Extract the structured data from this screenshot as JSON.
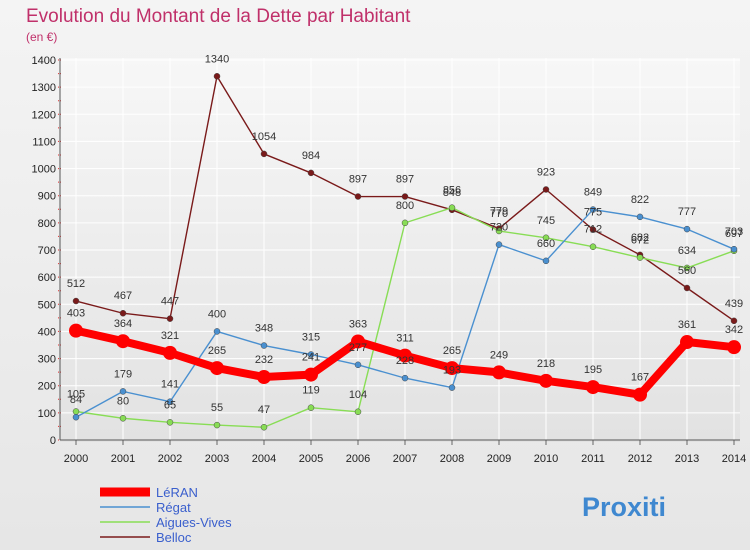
{
  "chart_data": {
    "type": "line",
    "title": "Evolution du Montant de la Dette par Habitant",
    "subtitle": "(en €)",
    "xlabel": "",
    "ylabel": "",
    "x": [
      "2000",
      "2001",
      "2002",
      "2003",
      "2004",
      "2005",
      "2006",
      "2007",
      "2008",
      "2009",
      "2010",
      "2011",
      "2012",
      "2013",
      "2014"
    ],
    "ylim": [
      0,
      1400
    ],
    "yticks": [
      0,
      100,
      200,
      300,
      400,
      500,
      600,
      700,
      800,
      900,
      1000,
      1100,
      1200,
      1300,
      1400
    ],
    "grid": true,
    "legend_position": "bottom-left",
    "series": [
      {
        "name": "LéRAN",
        "color": "#ff0000",
        "values": [
          403,
          364,
          321,
          265,
          232,
          241,
          363,
          311,
          265,
          249,
          218,
          195,
          167,
          361,
          342
        ]
      },
      {
        "name": "Régat",
        "color": "#4a90d0",
        "values": [
          84,
          179,
          141,
          400,
          348,
          315,
          277,
          228,
          193,
          720,
          660,
          849,
          822,
          777,
          703
        ]
      },
      {
        "name": "Aigues-Vives",
        "color": "#88dd55",
        "values": [
          105,
          80,
          65,
          55,
          47,
          119,
          104,
          800,
          856,
          770,
          745,
          712,
          672,
          634,
          697
        ]
      },
      {
        "name": "Belloc",
        "color": "#7a1a1a",
        "values": [
          512,
          467,
          447,
          1340,
          1054,
          984,
          897,
          897,
          848,
          779,
          923,
          775,
          682,
          560,
          439
        ]
      }
    ],
    "label_offsets": [
      [
        -14,
        -14,
        -14,
        -14,
        -14,
        -14,
        -14,
        -14,
        -14,
        -14,
        -14,
        -14,
        -14,
        -14,
        -14
      ],
      [
        -14,
        -14,
        -14,
        -14,
        -14,
        -14,
        -14,
        -14,
        -14,
        -14,
        -14,
        -14,
        -14,
        -14,
        -14
      ],
      [
        -14,
        -14,
        -14,
        -14,
        -14,
        -14,
        -14,
        -14,
        -14,
        -14,
        -14,
        -14,
        -14,
        -14,
        -14
      ],
      [
        -14,
        -14,
        -14,
        -14,
        -14,
        -14,
        -14,
        -14,
        -14,
        -14,
        -14,
        -14,
        -14,
        -14,
        -14
      ]
    ]
  },
  "brand": {
    "logo_text": "Proxiti"
  }
}
